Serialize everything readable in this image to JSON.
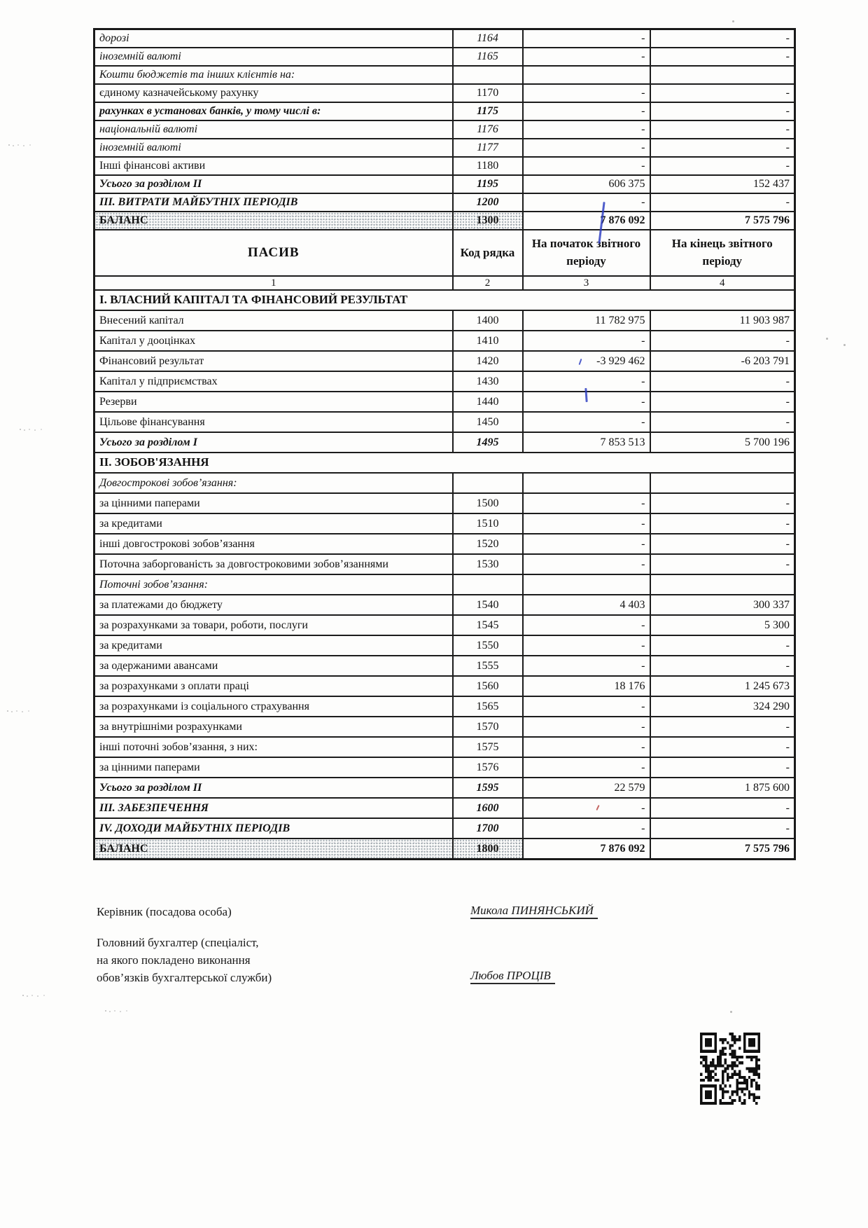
{
  "table": {
    "header": {
      "col1": "ПАСИВ",
      "col2": "Код рядка",
      "col3": "На початок звітного періоду",
      "col4": "На кінець звітного періоду",
      "numbering": [
        "1",
        "2",
        "3",
        "4"
      ]
    },
    "rows_top": [
      {
        "label": "дорозі",
        "code": "1164",
        "v1": "-",
        "v2": "-",
        "cls": "it"
      },
      {
        "label": "іноземній валюті",
        "code": "1165",
        "v1": "-",
        "v2": "-",
        "cls": "it"
      },
      {
        "label": "Кошти бюджетів та інших клієнтів на:",
        "code": "",
        "v1": "",
        "v2": "",
        "cls": "it"
      },
      {
        "label": "єдиному казначейському рахунку",
        "code": "1170",
        "v1": "-",
        "v2": "-",
        "cls": ""
      },
      {
        "label": "рахунках в установах банків, у тому числі в:",
        "code": "1175",
        "v1": "-",
        "v2": "-",
        "cls": "bi"
      },
      {
        "label": "національній валюті",
        "code": "1176",
        "v1": "-",
        "v2": "-",
        "cls": "it"
      },
      {
        "label": "іноземній валюті",
        "code": "1177",
        "v1": "-",
        "v2": "-",
        "cls": "it"
      },
      {
        "label": "Інші фінансові активи",
        "code": "1180",
        "v1": "-",
        "v2": "-",
        "cls": ""
      },
      {
        "label": "Усього за розділом II",
        "code": "1195",
        "v1": "606 375",
        "v2": "152 437",
        "cls": "bi"
      },
      {
        "label": "III. ВИТРАТИ МАЙБУТНІХ ПЕРІОДІВ",
        "code": "1200",
        "v1": "-",
        "v2": "-",
        "cls": "bi"
      },
      {
        "label": "БАЛАНС",
        "code": "1300",
        "v1": "7 876 092",
        "v2": "7 575 796",
        "cls": "b",
        "kind": "balance"
      }
    ],
    "rows_main": [
      {
        "label": "І. ВЛАСНИЙ КАПІТАЛ ТА ФІНАНСОВИЙ РЕЗУЛЬТАТ",
        "kind": "section"
      },
      {
        "label": "Внесений капітал",
        "code": "1400",
        "v1": "11 782 975",
        "v2": "11 903 987",
        "cls": ""
      },
      {
        "label": "Капітал у дооцінках",
        "code": "1410",
        "v1": "-",
        "v2": "-",
        "cls": ""
      },
      {
        "label": "Фінансовий результат",
        "code": "1420",
        "v1": "-3 929 462",
        "v2": "-6 203 791",
        "cls": ""
      },
      {
        "label": "Капітал у підприємствах",
        "code": "1430",
        "v1": "-",
        "v2": "-",
        "cls": ""
      },
      {
        "label": "Резерви",
        "code": "1440",
        "v1": "-",
        "v2": "-",
        "cls": ""
      },
      {
        "label": "Цільове фінансування",
        "code": "1450",
        "v1": "-",
        "v2": "-",
        "cls": ""
      },
      {
        "label": "Усього за розділом I",
        "code": "1495",
        "v1": "7 853 513",
        "v2": "5 700 196",
        "cls": "bi"
      },
      {
        "label": "II. ЗОБОВ'ЯЗАННЯ",
        "kind": "section"
      },
      {
        "label": "Довгострокові зобов’язання:",
        "code": "",
        "v1": "",
        "v2": "",
        "cls": "it"
      },
      {
        "label": "за цінними паперами",
        "code": "1500",
        "v1": "-",
        "v2": "-",
        "cls": ""
      },
      {
        "label": "за кредитами",
        "code": "1510",
        "v1": "-",
        "v2": "-",
        "cls": ""
      },
      {
        "label": "інші довгострокові зобов’язання",
        "code": "1520",
        "v1": "-",
        "v2": "-",
        "cls": ""
      },
      {
        "label": "Поточна заборгованість за довгостроковими зобов’язаннями",
        "code": "1530",
        "v1": "-",
        "v2": "-",
        "cls": ""
      },
      {
        "label": "Поточні зобов’язання:",
        "code": "",
        "v1": "",
        "v2": "",
        "cls": "it"
      },
      {
        "label": "за платежами до бюджету",
        "code": "1540",
        "v1": "4 403",
        "v2": "300 337",
        "cls": ""
      },
      {
        "label": "за розрахунками за товари, роботи, послуги",
        "code": "1545",
        "v1": "-",
        "v2": "5 300",
        "cls": ""
      },
      {
        "label": "за кредитами",
        "code": "1550",
        "v1": "-",
        "v2": "-",
        "cls": ""
      },
      {
        "label": "за одержаними авансами",
        "code": "1555",
        "v1": "-",
        "v2": "-",
        "cls": ""
      },
      {
        "label": "за розрахунками з оплати праці",
        "code": "1560",
        "v1": "18 176",
        "v2": "1 245 673",
        "cls": ""
      },
      {
        "label": "за розрахунками із соціального страхування",
        "code": "1565",
        "v1": "-",
        "v2": "324 290",
        "cls": ""
      },
      {
        "label": "за внутрішніми розрахунками",
        "code": "1570",
        "v1": "-",
        "v2": "-",
        "cls": ""
      },
      {
        "label": "інші поточні зобов’язання, з них:",
        "code": "1575",
        "v1": "-",
        "v2": "-",
        "cls": ""
      },
      {
        "label": "за цінними паперами",
        "code": "1576",
        "v1": "-",
        "v2": "-",
        "cls": ""
      },
      {
        "label": "Усього за розділом II",
        "code": "1595",
        "v1": "22 579",
        "v2": "1 875 600",
        "cls": "bi"
      },
      {
        "label": "III. ЗАБЕЗПЕЧЕННЯ",
        "code": "1600",
        "v1": "-",
        "v2": "-",
        "cls": "bi"
      },
      {
        "label": "IV. ДОХОДИ МАЙБУТНІХ ПЕРІОДІВ",
        "code": "1700",
        "v1": "-",
        "v2": "-",
        "cls": "bi"
      },
      {
        "label": "БАЛАНС",
        "code": "1800",
        "v1": "7 876 092",
        "v2": "7 575 796",
        "cls": "b",
        "kind": "balance"
      }
    ]
  },
  "signatures": {
    "director_label": "Керівник (посадова особа)",
    "director_name": "Микола ПИНЯНСЬКИЙ",
    "accountant_line1": "Головний бухгалтер (спеціаліст,",
    "accountant_line2": "на якого покладено виконання",
    "accountant_line3": "обов’язків бухгалтерської служби)",
    "accountant_name": "Любов ПРОЦІВ"
  }
}
